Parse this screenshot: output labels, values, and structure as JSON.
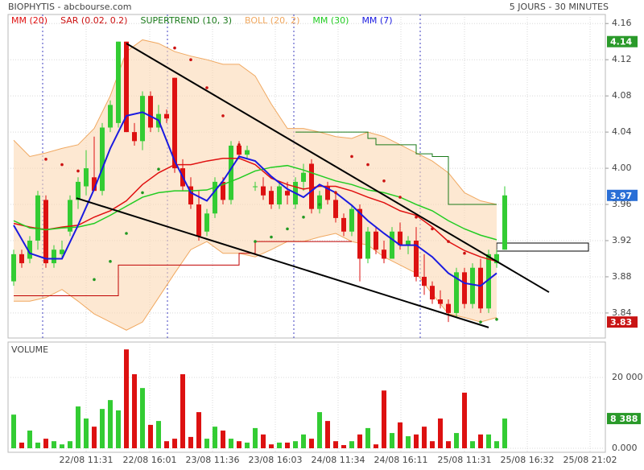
{
  "chart_data": [
    {
      "type": "candlestick",
      "title": "BIOPHYTIS - abcbourse.com",
      "subtitle": "5 JOURS - 30 MINUTES",
      "up_color": "#33cc33",
      "down_color": "#dd1111",
      "open": [
        3.875,
        3.905,
        3.9,
        3.92,
        3.965,
        3.895,
        3.905,
        3.93,
        3.965,
        3.98,
        3.99,
        3.975,
        4.045,
        4.05,
        4.14,
        4.04,
        4.03,
        4.08,
        4.045,
        4.06,
        4.1,
        4.0,
        3.98,
        3.96,
        3.93,
        3.95,
        3.985,
        3.965,
        4.025,
        4.015,
        3.98,
        3.98,
        3.975,
        3.96,
        3.975,
        3.96,
        3.985,
        4.005,
        3.955,
        3.98,
        3.965,
        3.945,
        3.93,
        3.955,
        3.9,
        3.93,
        3.91,
        3.9,
        3.93,
        3.915,
        3.92,
        3.88,
        3.87,
        3.855,
        3.85,
        3.84,
        3.885,
        3.85,
        3.89,
        3.845,
        3.895,
        3.91
      ],
      "high": [
        3.91,
        3.91,
        3.925,
        3.975,
        3.97,
        3.915,
        3.92,
        3.97,
        3.99,
        4.02,
        4.035,
        4.05,
        4.075,
        4.14,
        4.14,
        4.05,
        4.085,
        4.085,
        4.07,
        4.065,
        4.1,
        4.01,
        3.99,
        3.975,
        3.955,
        3.99,
        3.99,
        4.03,
        4.03,
        4.025,
        3.985,
        3.99,
        3.98,
        3.985,
        3.985,
        3.99,
        4.005,
        4.01,
        3.975,
        3.985,
        3.975,
        3.95,
        3.96,
        3.96,
        3.935,
        3.935,
        3.92,
        3.935,
        3.94,
        3.925,
        3.935,
        3.905,
        3.875,
        3.865,
        3.855,
        3.89,
        3.89,
        3.895,
        3.9,
        3.91,
        3.91,
        3.98
      ],
      "low": [
        3.87,
        3.89,
        3.895,
        3.91,
        3.89,
        3.89,
        3.9,
        3.925,
        3.955,
        3.97,
        3.975,
        3.97,
        4.04,
        4.045,
        4.04,
        4.025,
        4.02,
        4.04,
        4.04,
        4.05,
        3.995,
        3.975,
        3.955,
        3.92,
        3.925,
        3.945,
        3.96,
        3.96,
        4.01,
        4.01,
        3.975,
        3.965,
        3.955,
        3.955,
        3.96,
        3.955,
        3.975,
        3.95,
        3.95,
        3.96,
        3.94,
        3.925,
        3.925,
        3.875,
        3.895,
        3.905,
        3.895,
        3.9,
        3.91,
        3.905,
        3.875,
        3.86,
        3.85,
        3.845,
        3.83,
        3.835,
        3.845,
        3.845,
        3.84,
        3.84,
        3.89,
        3.91
      ],
      "close": [
        3.905,
        3.895,
        3.92,
        3.97,
        3.895,
        3.91,
        3.91,
        3.965,
        3.985,
        4.0,
        3.975,
        4.045,
        4.07,
        4.14,
        4.04,
        4.03,
        4.08,
        4.045,
        4.06,
        4.055,
        4.0,
        3.98,
        3.96,
        3.925,
        3.95,
        3.985,
        3.965,
        4.025,
        4.015,
        4.02,
        3.98,
        3.97,
        3.96,
        3.98,
        3.97,
        3.985,
        3.995,
        3.955,
        3.97,
        3.965,
        3.945,
        3.93,
        3.955,
        3.9,
        3.93,
        3.91,
        3.9,
        3.93,
        3.915,
        3.92,
        3.88,
        3.87,
        3.855,
        3.85,
        3.84,
        3.885,
        3.85,
        3.89,
        3.845,
        3.905,
        3.905,
        3.97
      ],
      "ylim": [
        3.815,
        4.17
      ],
      "yticks": [
        4.16,
        4.12,
        4.08,
        4.04,
        {
          "value": 4,
          "label": "4.00"
        },
        3.96,
        3.92,
        3.88,
        3.84
      ],
      "grid": true,
      "price_markers": [
        {
          "value": 4.14,
          "color": "#2a9a2a"
        },
        {
          "value": 3.97,
          "color": "#2a6fd6"
        },
        {
          "value": 3.83,
          "color": "#c81414"
        }
      ],
      "overlays": {
        "x": [
          0,
          2,
          4,
          6,
          8,
          10,
          12,
          14,
          16,
          18,
          20,
          22,
          24,
          26,
          28,
          30,
          32,
          34,
          36,
          38,
          40,
          42,
          44,
          46,
          48,
          50,
          52,
          54,
          56,
          58,
          60
        ],
        "series": [
          {
            "name": "MM (20)",
            "color": "#e01010",
            "style": "line",
            "values": [
              3.939,
              3.935,
              3.932,
              3.935,
              3.937,
              3.946,
              3.953,
              3.964,
              3.982,
              3.995,
              4.004,
              4.004,
              4.008,
              4.011,
              4.011,
              4.004,
              3.989,
              3.982,
              3.977,
              3.98,
              3.98,
              3.975,
              3.968,
              3.962,
              3.953,
              3.948,
              3.935,
              3.919,
              3.909,
              3.902,
              3.897
            ]
          },
          {
            "name": "SAR (0.02, 0.2)",
            "color": "#cc1111",
            "color_below": "#229922",
            "style": "dots",
            "values": [
              null,
              null,
              4.01,
              4.004,
              3.997,
              3.877,
              3.897,
              3.928,
              3.973,
              3.999,
              4.133,
              4.12,
              4.089,
              4.058,
              4.026,
              3.919,
              3.924,
              3.933,
              3.946,
              3.96,
              3.973,
              4.013,
              4.004,
              3.986,
              3.968,
              3.946,
              3.933,
              3.919,
              3.906,
              3.83,
              3.833
            ]
          },
          {
            "name": "SUPERTREND (10, 3)",
            "color": "#1a7a1a",
            "style": "step",
            "pieces": [
              {
                "color": "#c00000",
                "x": [
                  0,
                  13,
                  28,
                  30,
                  42
                ],
                "values": [
                  3.859,
                  3.893,
                  3.906,
                  3.919,
                  3.919
                ]
              },
              {
                "color": "#1a7a1a",
                "x": [
                  35,
                  44,
                  45,
                  50,
                  52,
                  54,
                  60
                ],
                "values": [
                  4.04,
                  4.033,
                  4.026,
                  4.016,
                  4.013,
                  3.96,
                  3.96
                ]
              }
            ]
          },
          {
            "name": "BOLL (20, 2)",
            "color": "#f0a860",
            "style": "band",
            "values": [
              4.031,
              4.013,
              4.017,
              4.022,
              4.026,
              4.044,
              4.08,
              4.129,
              4.142,
              4.138,
              4.129,
              4.124,
              4.12,
              4.115,
              4.115,
              4.102,
              4.071,
              4.044,
              4.044,
              4.04,
              4.035,
              4.033,
              4.04,
              4.035,
              4.026,
              4.017,
              4.008,
              3.995,
              3.973,
              3.964,
              3.96
            ],
            "lower": [
              3.853,
              3.853,
              3.857,
              3.866,
              3.853,
              3.839,
              3.83,
              3.821,
              3.83,
              3.857,
              3.884,
              3.91,
              3.919,
              3.906,
              3.906,
              3.902,
              3.91,
              3.919,
              3.919,
              3.924,
              3.928,
              3.919,
              3.915,
              3.902,
              3.893,
              3.884,
              3.861,
              3.839,
              3.835,
              3.83,
              3.835
            ]
          },
          {
            "name": "MM (30)",
            "color": "#22cc22",
            "style": "line",
            "values": [
              3.942,
              3.934,
              3.932,
              3.934,
              3.935,
              3.939,
              3.948,
              3.958,
              3.968,
              3.973,
              3.975,
              3.975,
              3.976,
              3.982,
              3.989,
              3.997,
              4.001,
              4.003,
              3.998,
              3.992,
              3.986,
              3.982,
              3.976,
              3.973,
              3.968,
              3.96,
              3.953,
              3.942,
              3.933,
              3.926,
              3.921
            ]
          },
          {
            "name": "MM (7)",
            "color": "#1a1ae0",
            "style": "line",
            "values": [
              3.937,
              3.906,
              3.9,
              3.9,
              3.937,
              3.977,
              4.022,
              4.058,
              4.062,
              4.053,
              4.008,
              3.973,
              3.964,
              3.986,
              4.013,
              4.008,
              3.991,
              3.977,
              3.968,
              3.982,
              3.973,
              3.959,
              3.942,
              3.928,
              3.915,
              3.915,
              3.902,
              3.884,
              3.873,
              3.87,
              3.884
            ]
          }
        ]
      },
      "trendlines": [
        {
          "x": [
            14,
            66.5
          ],
          "values": [
            4.138,
            3.863
          ]
        },
        {
          "x": [
            7.8,
            59
          ],
          "values": [
            3.967,
            3.824
          ]
        }
      ]
    },
    {
      "type": "bar",
      "title": "VOLUME",
      "values": [
        9500,
        1600,
        5000,
        1600,
        2700,
        2000,
        1100,
        2000,
        11800,
        8400,
        6100,
        11100,
        13600,
        10700,
        27900,
        20900,
        17000,
        6600,
        7700,
        2000,
        2700,
        20900,
        3200,
        10200,
        2700,
        6100,
        5000,
        2700,
        2000,
        1600,
        5700,
        3900,
        1100,
        1600,
        1600,
        2000,
        3900,
        2700,
        10200,
        7700,
        2000,
        900,
        2000,
        3900,
        5700,
        1100,
        16300,
        4300,
        7300,
        3400,
        3900,
        6100,
        2000,
        8400,
        2000,
        4300,
        15700,
        2000,
        3900,
        3900,
        2000,
        8388
      ],
      "ylim": [
        0,
        29300
      ],
      "yticks": [
        {
          "value": 20000,
          "label": "20 000"
        },
        {
          "value": 0,
          "label": "0.000"
        }
      ],
      "xlim": [
        -0.7,
        73.5
      ],
      "xticks": [
        {
          "value": 9,
          "label": "22/08 11:31"
        },
        {
          "value": 16.9,
          "label": "22/08 16:01"
        },
        {
          "value": 24.7,
          "label": "23/08 11:36"
        },
        {
          "value": 32.5,
          "label": "23/08 16:03"
        },
        {
          "value": 40.3,
          "label": "24/08 11:34"
        },
        {
          "value": 48.1,
          "label": "24/08 16:11"
        },
        {
          "value": 56,
          "label": "25/08 11:31"
        },
        {
          "value": 63.8,
          "label": "25/08 16:32"
        },
        {
          "value": 71.6,
          "label": "25/08 21:02"
        }
      ],
      "grid": true,
      "marker": {
        "value": 8388,
        "label": "8 388",
        "color": "#2a9a2a"
      }
    }
  ]
}
